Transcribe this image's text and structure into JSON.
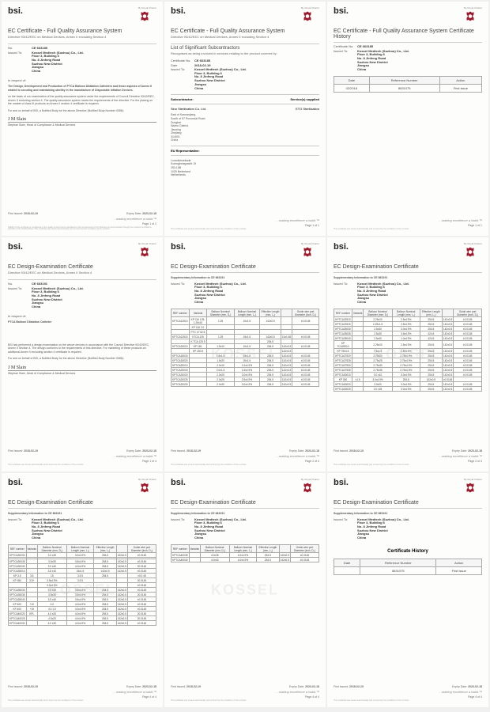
{
  "brand": "bsi.",
  "royal_charter": "By Royal Charter",
  "tagline": "...making excellence a habit.™",
  "company": {
    "name": "Kossel Medtech (Suzhou) Co., Ltd.",
    "addr1": "Floor 3, Building 6",
    "addr2": "No. 8 Jinfeng Road",
    "addr3": "Suzhou New District",
    "addr4": "Jiangsu",
    "addr5": "China"
  },
  "titles": {
    "full_qa": "EC Certificate - Full Quality Assurance System",
    "full_qa_hist": "EC Certificate - Full Quality Assurance System Certificate History",
    "directive": "Directive 93/42/EEC on Medical Devices, Annex II excluding Section 4",
    "subcontractors": "List of Significant Subcontractors",
    "subcontractors_sub": "Recognised as being involved in services relating to the product covered by:",
    "design_exam": "EC Design-Examination Certificate",
    "design_directive": "Directive 93/42/EEC on Medical Devices, Annex II Section 4",
    "supp_info": "Supplementary Information to CE 663191",
    "cert_history": "Certificate History"
  },
  "labels": {
    "no": "No.",
    "issued_to": "Issued To:",
    "cert_no": "Certificate No:",
    "date": "Date:",
    "in_respect": "In respect of:",
    "subcontractor": "Subcontractor:",
    "services": "Service(s) supplied",
    "eu_rep": "EU Representative:",
    "first_issued": "First Issued:",
    "expiry": "Expiry Date:",
    "date_col": "Date",
    "ref_col": "Reference Number",
    "action_col": "Action",
    "ref_num": "REF number",
    "variants": "Variants",
    "balloon_nom": "Balloon Nominal Diameter (mm, D₁)",
    "balloon_len": "Balloon Nominal Length (mm, L₁)",
    "eff_len": "Effective Length (mm, L₂)",
    "guide_port": "Guide wire port Diameter (inch, D₂)"
  },
  "cert1": {
    "no": "CE 663185",
    "respect": "The Design, Development and Production of PTCA Balloon Dilatation Catheters and those aspects of Annex II related to securing and maintaining sterility in the manufacture of Disposable Inflation Devices.",
    "body1": "on the basis of our examination of the quality assurance system under the requirements of Council Directive 93/42/EEC, Annex II excluding section 4. The quality assurance system meets the requirements of the directive. For the placing on the market of class III products an Annex II section 4 certificate is required.",
    "body2": "For and on behalf of BSI, a Notified Body for the above Directive (Notified Body Number 0086):",
    "sig": "J M Slain",
    "sig_name": "Stephan Slain, Head of Compliance & Medical Devices",
    "first_issued": "2018-02-19",
    "expiry": "2023-02-18",
    "page": "Page 1 of 1"
  },
  "cert2": {
    "no": "CE 663185",
    "date": "2018-02-19",
    "sub_name": "Sino Sterilization Co. Ltd.",
    "sub_addr": "East of Kannanjiang\nSouth of 57 Provincial Road\nDongbei\nNanhu District,\nJiaoxing\nZhejiang\n314001\nChina",
    "service": "ETO Sterilization",
    "eu_name": "Lotus NL B.V.",
    "eu_addr": "Loosduinsekade\nKoninginnegracht 19\n2514 AB\n1025 Nederland\nNetherlands",
    "page": "Page 1 of 1"
  },
  "cert3": {
    "no": "CE 663185",
    "hist_date": "02/2018",
    "hist_ref": "8631075",
    "hist_action": "First issue",
    "page": "Page 1 of 1"
  },
  "cert4": {
    "no": "CE 663191",
    "respect": "PTCA Balloon Dilatation Catheter",
    "body1": "BSI has performed a design examination on the above devices in accordance with the Council Directive 93/42/EEC, Annex II Section 4. The design conforms to the requirements of this directive. For marketing of these products an additional Annex II excluding section 4 certificate is required.",
    "body2": "For and on behalf of BSI, a Notified Body for the above Directive (Notified Body Number 0086):",
    "first_issued": "2018-02-19",
    "expiry": "2023-02-18",
    "page": "Page 1 of 4"
  },
  "cert5": {
    "first_issued": "2018-02-19",
    "expiry": "2023-02-18",
    "page": "Page 2 of 4",
    "rows": [
      [
        "KPTCA12510",
        "KP CAI 125-1.25x10",
        "1.25",
        "10x1.5",
        "142x0.5",
        "",
        "±0.0145"
      ],
      [
        "",
        "KP CAI 2.0",
        "",
        "",
        "",
        "",
        ""
      ],
      [
        "",
        "PTC 47 52.5",
        "",
        "",
        "",
        "",
        ""
      ],
      [
        "KPTCA12515",
        "KTCA 125",
        "1.25",
        "15x1.5",
        "142x0.5",
        "10x1.65",
        "±0.0145"
      ],
      [
        "",
        "K TCA 125 5",
        "",
        "",
        "254.5",
        "",
        ""
      ],
      [
        "KPTCA15010",
        "KP 150-",
        "1.5x10",
        "10x1.5",
        "254.5",
        "142x0.5",
        "±0.0145"
      ],
      [
        "",
        "KP 150.5",
        "",
        "",
        "",
        "142x0.5",
        ""
      ],
      [
        "KPTCA15015",
        "",
        "1.5x1.5",
        "15x1.5",
        "254.5",
        "142x0.5",
        "±0.0145"
      ],
      [
        "KPTCA15020",
        "",
        "1.5x20",
        "20x1.5",
        "254.5",
        "142x0.5",
        "±0.0145"
      ],
      [
        "KPTCA20010",
        "",
        "2.0x10",
        "1.0x4.9%",
        "254.5",
        "142x0.5",
        "±0.0145"
      ],
      [
        "KPTCA20015",
        "",
        "2.0x1.5",
        "1.5x4.9%",
        "254.5",
        "142x0.5",
        "±0.0145"
      ],
      [
        "KPTCA20020",
        "",
        "2.0x20",
        "2.0x4.9%",
        "254.5",
        "142x0.5",
        "±0.0145"
      ],
      [
        "KPTCA20025",
        "",
        "2.0x25",
        "2.5x4.9%",
        "254.5",
        "142x0.5",
        "±0.0145"
      ],
      [
        "KPTCA20030",
        "",
        "2.0x30",
        "3.0x4.9%",
        "254.5",
        "142x0.5",
        "±0.0145"
      ]
    ]
  },
  "cert6": {
    "first_issued": "2018-02-19",
    "expiry": "2023-02-18",
    "page": "Page 2 of 4",
    "rows": [
      [
        "KPTCA22510",
        "",
        "2.25x10",
        "2.5x4.9%",
        "254.5",
        "142x0.5",
        "±0.0145"
      ],
      [
        "KPTCA22515",
        "",
        "2.25x1.5",
        "2.5x4.9%",
        "254.5",
        "142x0.5",
        "±0.0145"
      ],
      [
        "KPTCA25030",
        "",
        "2.5x30",
        "3.0x4.9%",
        "254.5",
        "142x0.5",
        "±0.0145"
      ],
      [
        "KPTCA25035",
        "",
        "2.5x35",
        "3.5x4.9%",
        "424.5",
        "142x0.5",
        "±0.0145"
      ],
      [
        "KPTCA25040",
        "",
        "2.5x40",
        "1.0x4.9%",
        "424.5",
        "142x0.5",
        "±0.0145"
      ],
      [
        "KP TCA29010",
        "",
        "2.25x10",
        "2.5x4.9%",
        "254.5",
        "142x0.5",
        "±0.0145"
      ],
      [
        "KP 7504.5",
        "",
        "7.5x1.5",
        "2.5x4.9%",
        "254.5",
        "142x0.5",
        "±0.0145"
      ],
      [
        "KPTCA27520",
        "",
        "2.75x20",
        "2.75x4.9%",
        "254.5",
        "142x0.5",
        "±0.0145"
      ],
      [
        "KPTCA27525",
        "",
        "2.75x25",
        "2.75x4.9%",
        "254.5",
        "142x0.5",
        "±0.0145"
      ],
      [
        "KPTCA27530",
        "",
        "2.75x30",
        "2.75x4.9%",
        "254.5",
        "142x0.5",
        "±0.0145"
      ],
      [
        "KPTCA27535",
        "",
        "2.75x35",
        "2.75x4.9%",
        "254.5",
        "142x0.5",
        "±0.0145"
      ],
      [
        "KPTCA30010",
        "",
        "3.0 x10",
        "3.0x4.9%",
        "254.5",
        "142x0.5",
        "±0.0145"
      ],
      [
        "KP 300",
        "x1.5",
        "3.0x4.9%",
        "254.5",
        "142x0.5",
        "±0.0145",
        ""
      ],
      [
        "KPTCA30020",
        "",
        "3.0x20",
        "3.0x4.9%",
        "254.5",
        "142x0.5",
        "±0.0145"
      ],
      [
        "KPTCA30025",
        "",
        "3.0 x25",
        "3.0x4.9%",
        "254.5",
        "142x0.5",
        "±0.0145"
      ]
    ]
  },
  "cert7": {
    "first_issued": "2018-02-19",
    "expiry": "2023-02-18",
    "page": "Page 4 of 4",
    "rows": [
      [
        "KPTCA30030",
        "",
        "3.0 x30",
        "3.0x4.9%",
        "254.5",
        "142x0.5",
        "±0.0145"
      ],
      [
        "",
        "",
        "",
        "",
        "",
        "",
        ""
      ],
      [
        "KPTCA30035",
        "",
        "3.0x35",
        "3.5x4.9%",
        "254.5",
        "142x0.5",
        "±0.0145"
      ],
      [
        "KPTCA30040",
        "",
        "3.0 x40",
        "4.0x4.9%",
        "254.5",
        "142x0.5",
        "20.0145"
      ],
      [
        "KPTCA35010",
        "",
        "3.5 x10",
        "15x1.5",
        "142x0.5",
        "142x0.5",
        "±0.0145"
      ],
      [
        "KP 3.5",
        "3.5",
        "15",
        "3.5 5",
        "254.5",
        "",
        "±0.0 45"
      ],
      [
        "KP 350",
        "3.5+",
        "3.5x4.9%",
        "3.5 5",
        "",
        "",
        "20.0145"
      ],
      [
        "",
        "",
        "3.5x4.9%",
        "",
        "",
        "",
        "±0.0145"
      ],
      [
        "KPTCA35030",
        "",
        "3.5 x30",
        "3.5x4.9%",
        "254.5",
        "142x0.5",
        "±0.0145"
      ],
      [
        "KPTCA35035",
        "",
        "3.5x35",
        "3.5x4.9%",
        "254.5",
        "142x0.5",
        "20.0145"
      ],
      [
        "KPTCA35040",
        "",
        "3.5 x40",
        "3.5x4.9%",
        "254.5",
        "142x0.5",
        "±0.0145"
      ],
      [
        "KP 400",
        "+10",
        "4.0",
        "4.0x4.9%",
        "254.5",
        "142x0.5",
        "±0.0145"
      ],
      [
        "KP 400",
        "+15",
        "4.0 1.5",
        "4.0x4.9%",
        "254.5",
        "142x0.5",
        "±0.0145"
      ],
      [
        "KPTCA40020",
        "KPL",
        "4.0 x20",
        "4.0x4.9%",
        "254.5",
        "142x0.5",
        "20.0145"
      ],
      [
        "KPTCA40025",
        "",
        "4.0x25",
        "4.0x4.9%",
        "254.5",
        "142x0.5",
        "20.0145"
      ],
      [
        "KPTCA40030",
        "",
        "4.0 x30",
        "4.0x4.9%",
        "254.5",
        "142x0.5",
        "±0.0145"
      ]
    ]
  },
  "cert8": {
    "first_issued": "2018-02-19",
    "expiry": "2023-02-18",
    "page": "Page 4 of 4",
    "rows": [
      [
        "KPTCA40035",
        "",
        "4.0x35",
        "4.0x4.9%",
        "254.5",
        "142x0.5",
        "±0.0145"
      ],
      [
        "KPTCA40040",
        "",
        "4.0x40",
        "4.0x4.9%",
        "254.5",
        "142x0.5",
        "±0.0145"
      ]
    ]
  },
  "cert9": {
    "first_issued": "2018-02-19",
    "expiry": "2023-02-18",
    "page": "Page 4 of 4",
    "hist_ref": "8631075",
    "hist_action": "First issue"
  },
  "colors": {
    "crest": "#9b1c2e",
    "text": "#333333",
    "border": "#cccccc"
  }
}
